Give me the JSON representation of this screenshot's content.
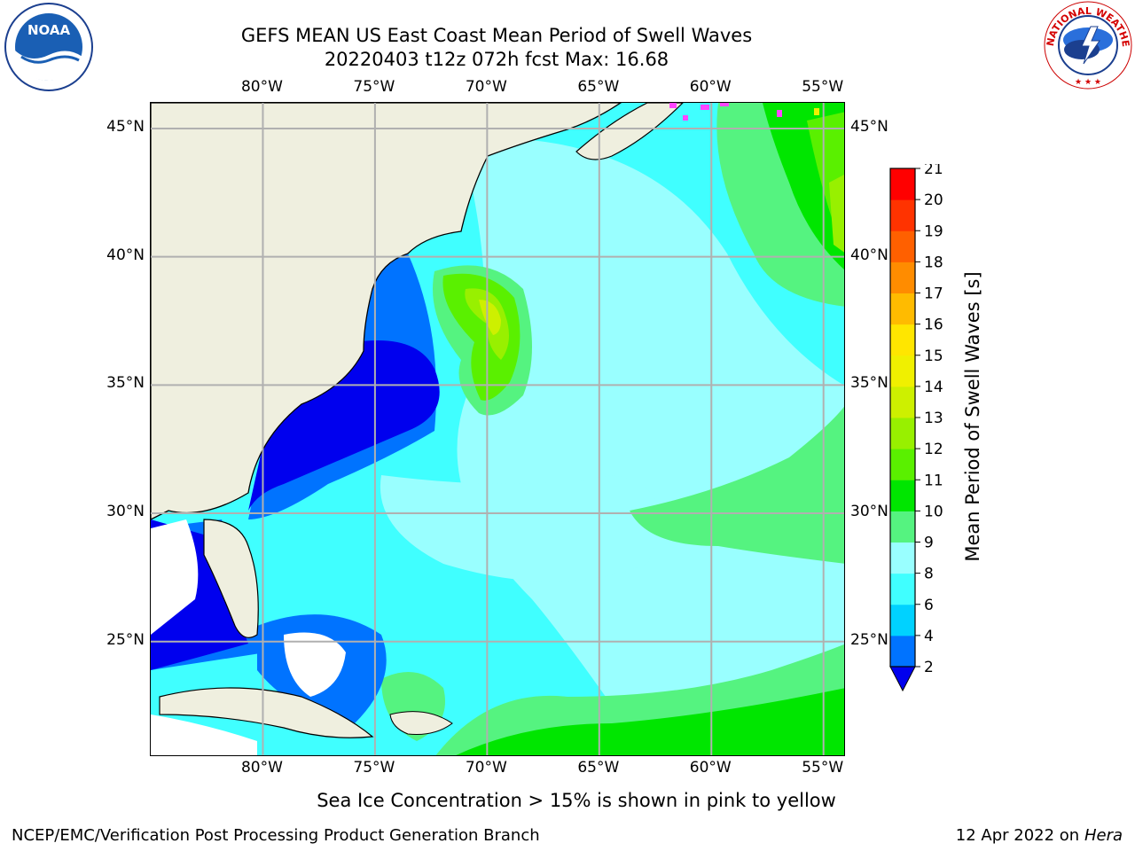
{
  "header": {
    "title_line1": "GEFS MEAN US East Coast Mean Period of Swell Waves",
    "title_line2": "20220403 t12z 072h fcst   Max: 16.68"
  },
  "logos": {
    "left": {
      "name": "noaa-logo",
      "text": "NOAA",
      "ring_text": "NATIONAL OCEANIC AND ATMOSPHERIC ADMINISTRATION · U.S. DEPARTMENT OF COMMERCE"
    },
    "right": {
      "name": "nws-logo",
      "ring_text": "NATIONAL WEATHER SERVICE"
    }
  },
  "map": {
    "lon_ticks": [
      "80°W",
      "75°W",
      "70°W",
      "65°W",
      "60°W",
      "55°W"
    ],
    "lat_ticks": [
      "45°N",
      "40°N",
      "35°N",
      "30°N",
      "25°N"
    ],
    "lon_range": [
      -85,
      -54
    ],
    "lat_range": [
      20.5,
      46
    ]
  },
  "colorbar": {
    "label": "Mean Period of Swell Waves [s]",
    "ticks": [
      "2",
      "4",
      "6",
      "8",
      "9",
      "10",
      "11",
      "12",
      "13",
      "14",
      "15",
      "16",
      "17",
      "18",
      "19",
      "20",
      "21"
    ],
    "colors": [
      "#0073ff",
      "#00d2ff",
      "#40ffff",
      "#99ffff",
      "#55f380",
      "#00e600",
      "#5af000",
      "#98f000",
      "#cdf000",
      "#f0f000",
      "#ffe600",
      "#ffbb00",
      "#ff8c00",
      "#ff6000",
      "#ff3300",
      "#ff0000"
    ],
    "under_color": "#0000ee"
  },
  "footer": {
    "note": "Sea Ice Concentration > 15% is shown in pink to yellow",
    "left": "NCEP/EMC/Verification Post Processing Product Generation Branch",
    "date": "12 Apr 2022 on ",
    "machine": "Hera"
  }
}
